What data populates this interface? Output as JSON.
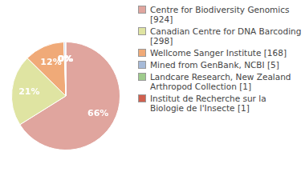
{
  "chart_data": {
    "type": "pie",
    "categories": [
      "Centre for Biodiversity Genomics [924]",
      "Canadian Centre for DNA Barcoding [298]",
      "Wellcome Sanger Institute [168]",
      "Mined from GenBank, NCBI [5]",
      "Landcare Research, New Zealand Arthropod Collection [1]",
      "Institut de Recherche sur la Biologie de l'Insecte [1]"
    ],
    "values": [
      66.1,
      21.3,
      12.0,
      0.4,
      0.1,
      0.1
    ],
    "value_labels": [
      "66%",
      "21%",
      "12%",
      "0%",
      "0%",
      "0%"
    ],
    "colors": [
      "#e0a59e",
      "#dfe4a2",
      "#f0aa78",
      "#a6bad8",
      "#9ecb8c",
      "#d0604f"
    ],
    "data_labels": true,
    "legend": "right"
  }
}
